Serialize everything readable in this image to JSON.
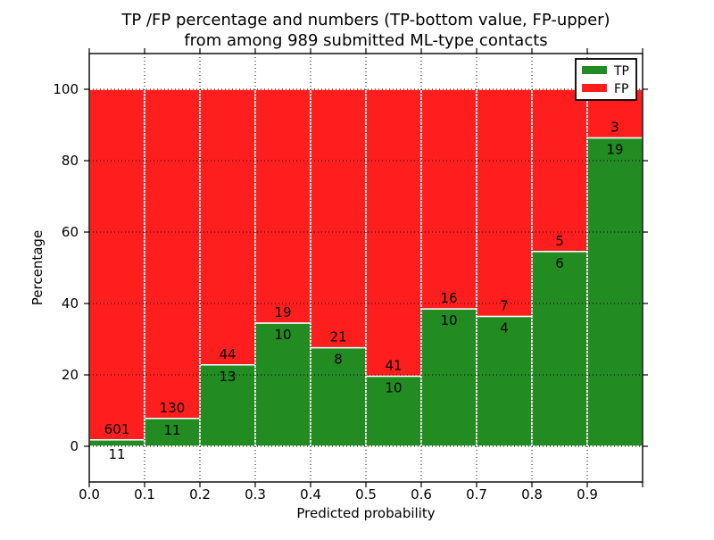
{
  "figure": {
    "title_line1": "TP /FP percentage and numbers (TP-bottom value, FP-upper)",
    "title_line2": "from among 989 submitted ML-type contacts",
    "xlabel": "Predicted probability",
    "ylabel": "Percentage"
  },
  "legend": {
    "position": "upper right",
    "entries": [
      {
        "label": "TP",
        "color": "#228b22"
      },
      {
        "label": "FP",
        "color": "#ff1e1e"
      }
    ]
  },
  "chart_data": {
    "type": "bar",
    "variant": "stacked-percentage",
    "title": "TP /FP percentage and numbers (TP-bottom value, FP-upper) from among 989 submitted ML-type contacts",
    "xlabel": "Predicted probability",
    "ylabel": "Percentage",
    "xlim": [
      0.0,
      1.0
    ],
    "ylim": [
      -10,
      110
    ],
    "grid": true,
    "legend_position": "upper right",
    "x_tick_labels": [
      "0.0",
      "0.1",
      "0.2",
      "0.3",
      "0.4",
      "0.5",
      "0.6",
      "0.7",
      "0.8",
      "0.9"
    ],
    "y_tick_labels": [
      "0",
      "20",
      "40",
      "60",
      "80",
      "100"
    ],
    "y_tick_values": [
      0,
      20,
      40,
      60,
      80,
      100
    ],
    "categories": [
      "0.0-0.1",
      "0.1-0.2",
      "0.2-0.3",
      "0.3-0.4",
      "0.4-0.5",
      "0.5-0.6",
      "0.6-0.7",
      "0.7-0.8",
      "0.8-0.9",
      "0.9-1.0"
    ],
    "series": [
      {
        "name": "TP",
        "color": "#228b22",
        "counts": [
          11,
          11,
          13,
          10,
          8,
          10,
          10,
          4,
          6,
          19
        ]
      },
      {
        "name": "FP",
        "color": "#ff1e1e",
        "counts": [
          601,
          130,
          44,
          19,
          21,
          41,
          16,
          7,
          5,
          3
        ]
      }
    ],
    "tp_percent": [
      1.8,
      7.8,
      22.8,
      34.5,
      27.6,
      19.6,
      38.5,
      36.4,
      54.5,
      86.4
    ],
    "total_contacts": 989,
    "labels_note": "TP-bottom value, FP-upper"
  }
}
